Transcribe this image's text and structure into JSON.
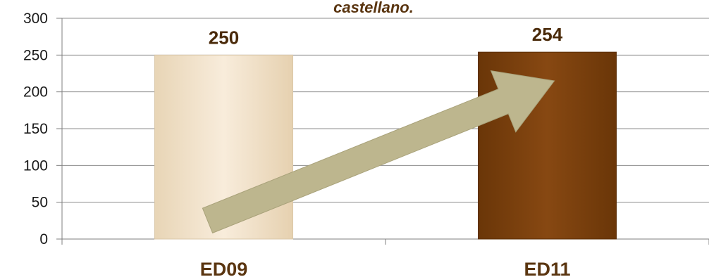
{
  "chart_data": {
    "type": "bar",
    "title": "castellano.",
    "categories": [
      "ED09",
      "ED11"
    ],
    "values": [
      250,
      254
    ],
    "data_labels": [
      "250",
      "254"
    ],
    "ylim": [
      0,
      300
    ],
    "yticks": [
      0,
      50,
      100,
      150,
      200,
      250,
      300
    ],
    "grid": true,
    "legend": "none",
    "bar_colors": [
      "#f5e6cf",
      "#7a420c"
    ],
    "overlay": "trend-arrow",
    "arrow_color": "#bdb68e"
  }
}
